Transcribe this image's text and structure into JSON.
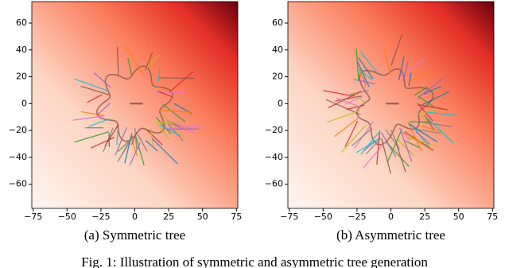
{
  "chart_data": [
    {
      "type": "heatmap-tree",
      "caption": "(a)  Symmetric tree",
      "xlim": [
        -76,
        76
      ],
      "ylim": [
        -78,
        76
      ],
      "xticks": [
        {
          "value": -75,
          "label": "−75"
        },
        {
          "value": -50,
          "label": "−50"
        },
        {
          "value": -25,
          "label": "−25"
        },
        0,
        25,
        50,
        75
      ],
      "yticks": [
        {
          "value": -60,
          "label": "−60"
        },
        {
          "value": -40,
          "label": "−40"
        },
        {
          "value": -20,
          "label": "−20"
        },
        0,
        20,
        40,
        60
      ]
    },
    {
      "type": "heatmap-tree",
      "caption": "(b)  Asymmetric tree",
      "xlim": [
        -76,
        76
      ],
      "ylim": [
        -78,
        76
      ],
      "xticks": [
        {
          "value": -75,
          "label": "−75"
        },
        {
          "value": -50,
          "label": "−50"
        },
        {
          "value": -25,
          "label": "−25"
        },
        0,
        25,
        50,
        75
      ],
      "yticks": [
        {
          "value": -60,
          "label": "−60"
        },
        {
          "value": -40,
          "label": "−40"
        },
        {
          "value": -20,
          "label": "−20"
        },
        0,
        20,
        40,
        60
      ]
    }
  ],
  "figure_caption": "Fig. 1:   Illustration   of   symmetric   and   asymmetric   tree   generation"
}
